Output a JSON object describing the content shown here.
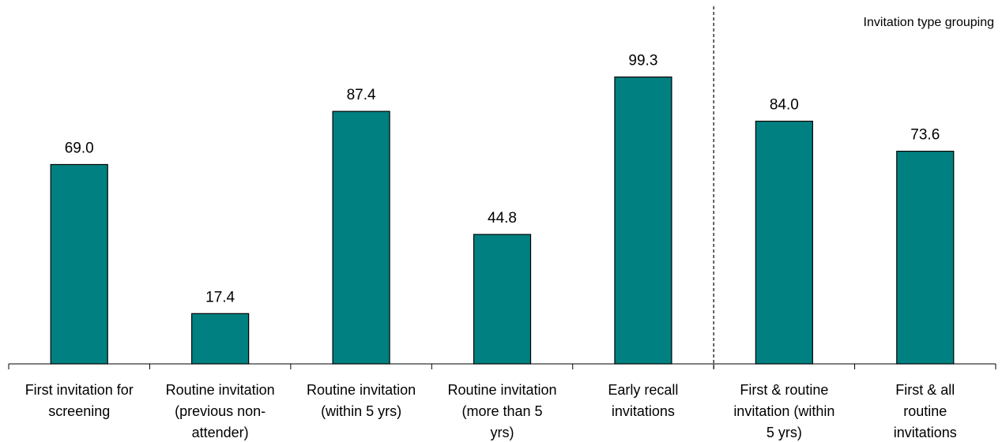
{
  "chart_data": {
    "type": "bar",
    "title": "",
    "xlabel": "",
    "ylabel": "",
    "ylim": [
      0,
      111
    ],
    "grid": false,
    "bar_color": "#008080",
    "group_annotation": "Invitation type grouping",
    "categories": [
      [
        "First invitation for",
        "screening"
      ],
      [
        "Routine invitation",
        "(previous non-",
        "attender)"
      ],
      [
        "Routine invitation",
        "(within 5 yrs)"
      ],
      [
        "Routine invitation",
        "(more than 5",
        "yrs)"
      ],
      [
        "Early recall",
        "invitations"
      ],
      [
        "First & routine",
        "invitation (within",
        "5 yrs)"
      ],
      [
        "First & all",
        "routine",
        "invitations"
      ]
    ],
    "values": [
      69.0,
      17.4,
      87.4,
      44.8,
      99.3,
      84.0,
      73.6
    ],
    "value_labels": [
      "69.0",
      "17.4",
      "87.4",
      "44.8",
      "99.3",
      "84.0",
      "73.6"
    ],
    "group_divider_after_index": 4
  }
}
